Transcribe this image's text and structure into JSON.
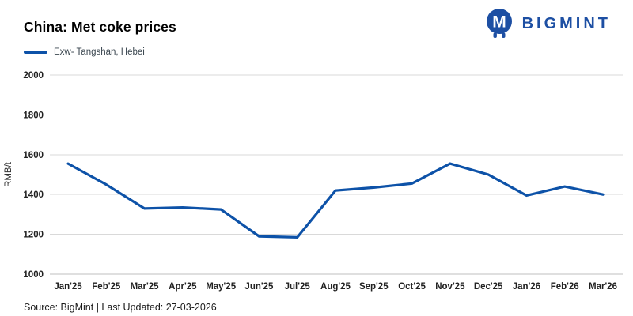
{
  "header": {
    "title": "China: Met coke prices",
    "legend": {
      "label": "Exw- Tangshan, Hebei"
    },
    "logo": {
      "monogram": "M",
      "text": "BIGMINT"
    }
  },
  "chart_data": {
    "type": "line",
    "title": "China: Met coke prices",
    "categories": [
      "Jan'25",
      "Feb'25",
      "Mar'25",
      "Apr'25",
      "May'25",
      "Jun'25",
      "Jul'25",
      "Aug'25",
      "Sep'25",
      "Oct'25",
      "Nov'25",
      "Dec'25",
      "Jan'26",
      "Feb'26",
      "Mar'26"
    ],
    "series": [
      {
        "name": "Exw- Tangshan, Hebei",
        "values": [
          1555,
          1450,
          1330,
          1335,
          1325,
          1190,
          1185,
          1420,
          1435,
          1455,
          1555,
          1500,
          1395,
          1440,
          1400
        ]
      }
    ],
    "xlabel": "",
    "ylabel": "RMB/t",
    "ylim": [
      1000,
      2000
    ],
    "yticks": [
      1000,
      1200,
      1400,
      1600,
      1800,
      2000
    ],
    "grid": true,
    "legend_position": "top-left"
  },
  "footer": {
    "source": "Source: BigMint | Last Updated: 27-03-2026"
  },
  "colors": {
    "line": "#0d52a8",
    "logo": "#1d4fa3",
    "grid": "#d9d9d9",
    "axis": "#bfbfbf",
    "tick_text": "#212121",
    "ylabel_text": "#333333"
  }
}
